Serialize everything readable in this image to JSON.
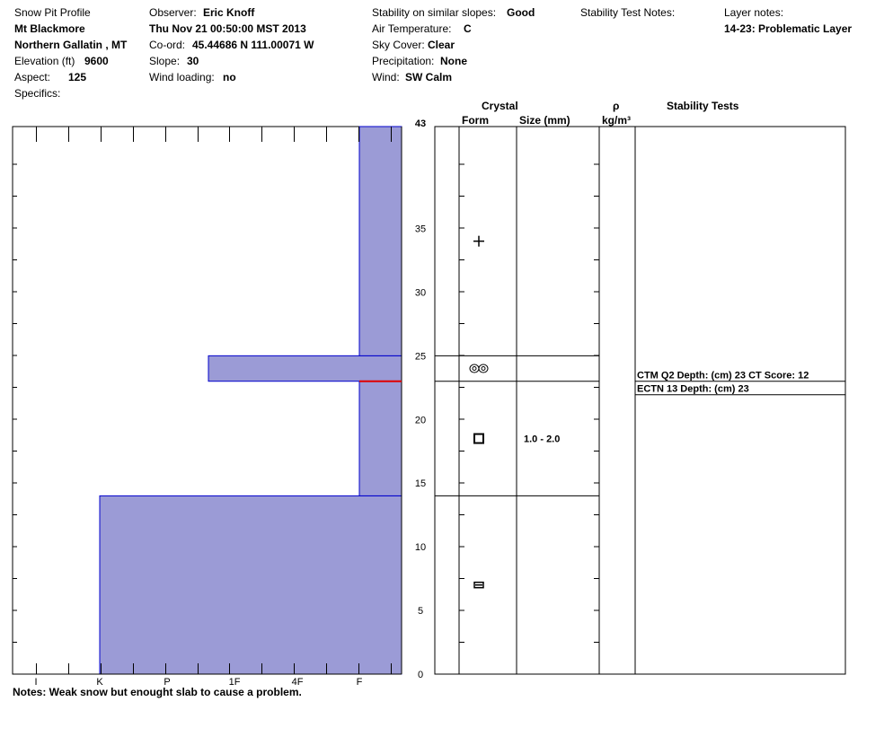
{
  "header": {
    "profile_label": "Snow Pit Profile",
    "location": "Mt Blackmore",
    "region": "Northern Gallatin , MT",
    "elevation_label": "Elevation (ft)",
    "elevation_value": "9600",
    "aspect_label": "Aspect:",
    "aspect_value": "125",
    "specifics_label": "Specifics:",
    "observer_label": "Observer:",
    "observer_value": "Eric Knoff",
    "datetime": "Thu Nov 21 00:50:00 MST 2013",
    "coord_label": "Co-ord:",
    "coord_value": "45.44686 N 111.00071 W",
    "slope_label": "Slope:",
    "slope_value": "30",
    "wind_loading_label": "Wind loading:",
    "wind_loading_value": "no",
    "stability_label": "Stability on similar slopes:",
    "stability_value": "Good",
    "air_temp_label": "Air Temperature:",
    "air_temp_value": "C",
    "sky_label": "Sky Cover:",
    "sky_value": "Clear",
    "precip_label": "Precipitation:",
    "precip_value": "None",
    "wind_label": "Wind:",
    "wind_value": "SW Calm",
    "stability_notes_label": "Stability Test Notes:",
    "layer_notes_label": "Layer notes:",
    "layer_notes_value": "14-23: Problematic Layer"
  },
  "columns": {
    "crystal": "Crystal",
    "form": "Form",
    "size": "Size (mm)",
    "rho": "ρ",
    "density_unit": "kg/m³",
    "stability_tests": "Stability Tests"
  },
  "notes": "Notes:  Weak snow but enought slab to cause a problem.",
  "colors": {
    "fill": "#9b9bd6",
    "outline": "#0000cc",
    "weak_layer": "#e00000"
  },
  "chart_data": {
    "type": "bar",
    "title": "Snow Pit Profile",
    "ylabel": "",
    "xlabel": "",
    "ylim": [
      0,
      43
    ],
    "y_ticks": [
      0,
      5,
      10,
      15,
      20,
      25,
      30,
      35
    ],
    "y_top_label": "43",
    "hardness_scale": [
      "I",
      "K",
      "P",
      "1F",
      "4F",
      "F"
    ],
    "layers": [
      {
        "bottom": 0,
        "top": 14,
        "hardness": "K"
      },
      {
        "bottom": 14,
        "top": 23,
        "hardness": "F"
      },
      {
        "bottom": 23,
        "top": 25,
        "hardness": "1F-"
      },
      {
        "bottom": 25,
        "top": 43,
        "hardness": "F"
      }
    ],
    "weak_layer_depth": 23,
    "crystals": [
      {
        "depth": 34,
        "form": "new-snow"
      },
      {
        "depth": 24,
        "form": "surface-hoar"
      },
      {
        "depth": 18.5,
        "form": "faceted",
        "size": "1.0 - 2.0"
      },
      {
        "depth": 7,
        "form": "melt-freeze-crust"
      }
    ],
    "layer_boundaries": [
      25,
      23,
      14
    ],
    "stability_tests": [
      {
        "depth": 23,
        "text": "CTM Q2 Depth: (cm) 23 CT Score: 12"
      },
      {
        "depth": 23,
        "text": "ECTN 13   Depth: (cm) 23"
      }
    ]
  }
}
